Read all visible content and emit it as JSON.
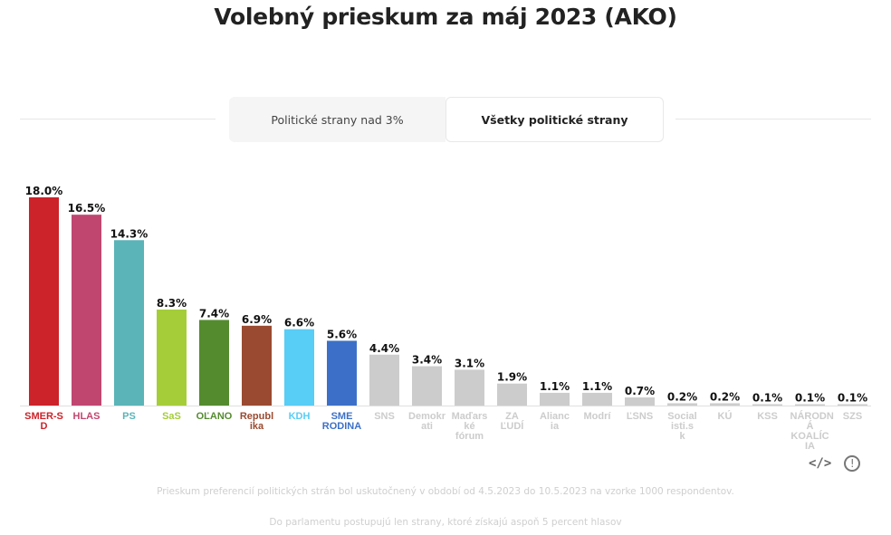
{
  "title": "Volebný prieskum za máj 2023 (AKO)",
  "tabs": [
    {
      "label": "Politické strany nad 3%",
      "active": false
    },
    {
      "label": "Všetky politické strany",
      "active": true
    }
  ],
  "chart_data": {
    "type": "bar",
    "title": "Volebný prieskum za máj 2023 (AKO)",
    "xlabel": "",
    "ylabel": "",
    "ylim": [
      0,
      18
    ],
    "grid": false,
    "value_suffix": "%",
    "categories": [
      "SMER-SD",
      "HLAS",
      "PS",
      "SaS",
      "OĽANO",
      "Republika",
      "KDH",
      "SME RODINA",
      "SNS",
      "Demokrati",
      "Maďarské fórum",
      "ZA ĽUDÍ",
      "Aliancia",
      "Modrí",
      "ĽSNS",
      "Socialisti.sk",
      "KÚ",
      "KSS",
      "NÁRODNÁ KOALÍCIA",
      "SZS"
    ],
    "category_labels": [
      "SMER-S D",
      "HLAS",
      "PS",
      "SaS",
      "OĽANO",
      "Republ ika",
      "KDH",
      "SME RODINA",
      "SNS",
      "Demokr ati",
      "Maďars ké fórum",
      "ZA ĽUDÍ",
      "Alianc ia",
      "Modrí",
      "ĽSNS",
      "Social isti.s k",
      "KÚ",
      "KSS",
      "NÁRODN Á KOALÍC IA",
      "SZS"
    ],
    "values": [
      18.0,
      16.5,
      14.3,
      8.3,
      7.4,
      6.9,
      6.6,
      5.6,
      4.4,
      3.4,
      3.1,
      1.9,
      1.1,
      1.1,
      0.7,
      0.2,
      0.2,
      0.1,
      0.1,
      0.1
    ],
    "value_labels": [
      "18.0%",
      "16.5%",
      "14.3%",
      "8.3%",
      "7.4%",
      "6.9%",
      "6.6%",
      "5.6%",
      "4.4%",
      "3.4%",
      "3.1%",
      "1.9%",
      "1.1%",
      "1.1%",
      "0.7%",
      "0.2%",
      "0.2%",
      "0.1%",
      "0.1%",
      "0.1%"
    ],
    "colors": [
      "#cc2229",
      "#c04670",
      "#5ab4b8",
      "#a5cd39",
      "#558b2f",
      "#9a4a30",
      "#58cdf5",
      "#3c70c8",
      "#cccccc",
      "#cccccc",
      "#cccccc",
      "#cccccc",
      "#cccccc",
      "#cccccc",
      "#cccccc",
      "#cccccc",
      "#cccccc",
      "#cccccc",
      "#cccccc",
      "#cccccc"
    ],
    "label_colors": [
      "#cc2229",
      "#c04670",
      "#5ab4b8",
      "#a5cd39",
      "#558b2f",
      "#9a4a30",
      "#58cdf5",
      "#3c70c8",
      "#cccccc",
      "#cccccc",
      "#cccccc",
      "#cccccc",
      "#cccccc",
      "#cccccc",
      "#cccccc",
      "#cccccc",
      "#cccccc",
      "#cccccc",
      "#cccccc",
      "#cccccc"
    ]
  },
  "icons": {
    "embed": "</>",
    "info": "!"
  },
  "notes": [
    "Prieskum preferencií politických strán bol uskutočnený v období od 4.5.2023 do 10.5.2023 na vzorke 1000 respondentov.",
    "Do parlamentu postupujú len strany, ktoré získajú aspoň 5 percent hlasov"
  ]
}
